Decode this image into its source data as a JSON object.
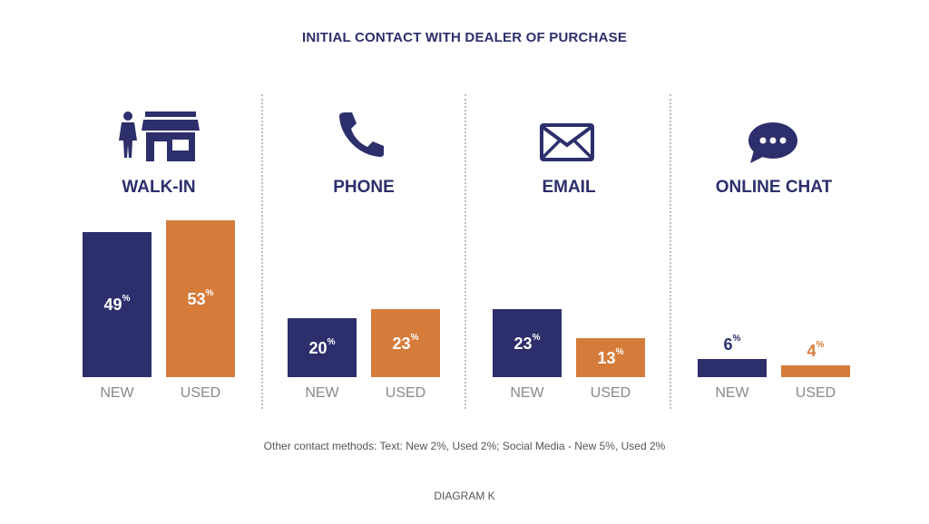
{
  "title": "INITIAL CONTACT WITH DEALER OF PURCHASE",
  "footnote": "Other contact methods:  Text: New 2%, Used 2%; Social Media - New 5%, Used 2%",
  "diagram_label": "DIAGRAM K",
  "colors": {
    "new": "#2c2f6b",
    "used": "#d57c3b",
    "text_dark": "#2c2f6b",
    "label_gray": "#8a8a8a"
  },
  "chart_data": {
    "type": "bar",
    "title": "INITIAL CONTACT WITH DEALER OF PURCHASE",
    "unit": "%",
    "categories": [
      "WALK-IN",
      "PHONE",
      "EMAIL",
      "ONLINE CHAT"
    ],
    "icons": [
      "person-store-icon",
      "phone-icon",
      "envelope-icon",
      "chat-bubble-icon"
    ],
    "bar_labels": [
      "NEW",
      "USED"
    ],
    "series": [
      {
        "name": "NEW",
        "values": [
          49,
          20,
          23,
          6
        ]
      },
      {
        "name": "USED",
        "values": [
          53,
          23,
          13,
          4
        ]
      }
    ],
    "ylim": [
      0,
      53
    ]
  }
}
